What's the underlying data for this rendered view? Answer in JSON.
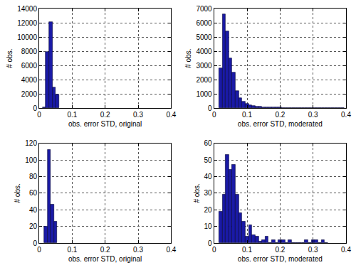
{
  "chart_data": [
    {
      "type": "histogram",
      "x_label": "obs. error STD, original",
      "y_label": "# obs.",
      "bins": [
        0.01,
        0.02,
        0.03,
        0.04,
        0.05,
        0.06
      ],
      "values": [
        100,
        7900,
        12100,
        2900,
        1900
      ],
      "color": "#1a1aa6",
      "xlim": [
        0,
        0.4
      ],
      "xticks": [
        0,
        0.1,
        0.2,
        0.3,
        0.4
      ],
      "ylim": [
        0,
        14000
      ],
      "yticks": [
        0,
        2000,
        4000,
        6000,
        8000,
        10000,
        12000,
        14000
      ],
      "grid": true
    },
    {
      "type": "histogram",
      "x_label": "obs. error STD, moderated",
      "y_label": "# obs.",
      "bins": [
        0.015,
        0.025,
        0.035,
        0.045,
        0.055,
        0.065,
        0.075,
        0.085,
        0.095,
        0.105,
        0.115,
        0.125,
        0.135,
        0.145,
        0.155,
        0.165,
        0.175,
        0.185,
        0.195,
        0.205,
        0.215,
        0.225,
        0.235,
        0.245,
        0.255,
        0.265,
        0.275,
        0.285,
        0.295,
        0.305,
        0.315,
        0.325,
        0.335,
        0.345,
        0.355,
        0.365,
        0.375,
        0.385,
        0.395
      ],
      "values": [
        2800,
        6600,
        5400,
        3500,
        2500,
        1200,
        700,
        450,
        300,
        200,
        150,
        120,
        100,
        80,
        70,
        60,
        50,
        45,
        40,
        35,
        30,
        30,
        25,
        25,
        20,
        20,
        15,
        15,
        15,
        10,
        10,
        10,
        10,
        8,
        8,
        5,
        5,
        5
      ],
      "color": "#1a1aa6",
      "xlim": [
        0,
        0.4
      ],
      "xticks": [
        0,
        0.1,
        0.2,
        0.3,
        0.4
      ],
      "ylim": [
        0,
        7000
      ],
      "yticks": [
        0,
        1000,
        2000,
        3000,
        4000,
        5000,
        6000,
        7000
      ],
      "grid": true
    },
    {
      "type": "histogram",
      "x_label": "obs. error STD, original",
      "y_label": "# obs.",
      "bins": [
        0.015,
        0.025,
        0.035,
        0.045,
        0.055
      ],
      "values": [
        20,
        112,
        46,
        26
      ],
      "color": "#1a1aa6",
      "xlim": [
        0,
        0.4
      ],
      "xticks": [
        0,
        0.1,
        0.2,
        0.3,
        0.4
      ],
      "ylim": [
        0,
        120
      ],
      "yticks": [
        0,
        20,
        40,
        60,
        80,
        100,
        120
      ],
      "grid": true
    },
    {
      "type": "histogram",
      "x_label": "obs. error STD, moderated",
      "y_label": "# obs.",
      "bins": [
        0.015,
        0.025,
        0.035,
        0.045,
        0.055,
        0.065,
        0.075,
        0.085,
        0.095,
        0.105,
        0.115,
        0.125,
        0.135,
        0.145,
        0.155,
        0.165,
        0.175,
        0.185,
        0.195,
        0.205,
        0.215,
        0.225,
        0.235,
        0.245,
        0.255,
        0.265,
        0.275,
        0.285,
        0.295,
        0.305,
        0.315,
        0.325,
        0.335,
        0.345
      ],
      "values": [
        19,
        29,
        53,
        44,
        47,
        29,
        18,
        13,
        4,
        11,
        5,
        4,
        1,
        2,
        4,
        0,
        2,
        0,
        2,
        2,
        0,
        2,
        0,
        0,
        0,
        0,
        2,
        0,
        2,
        2,
        0,
        2,
        0
      ],
      "color": "#1a1aa6",
      "xlim": [
        0,
        0.4
      ],
      "xticks": [
        0,
        0.1,
        0.2,
        0.3,
        0.4
      ],
      "ylim": [
        0,
        60
      ],
      "yticks": [
        0,
        10,
        20,
        30,
        40,
        50,
        60
      ],
      "grid": true
    }
  ]
}
